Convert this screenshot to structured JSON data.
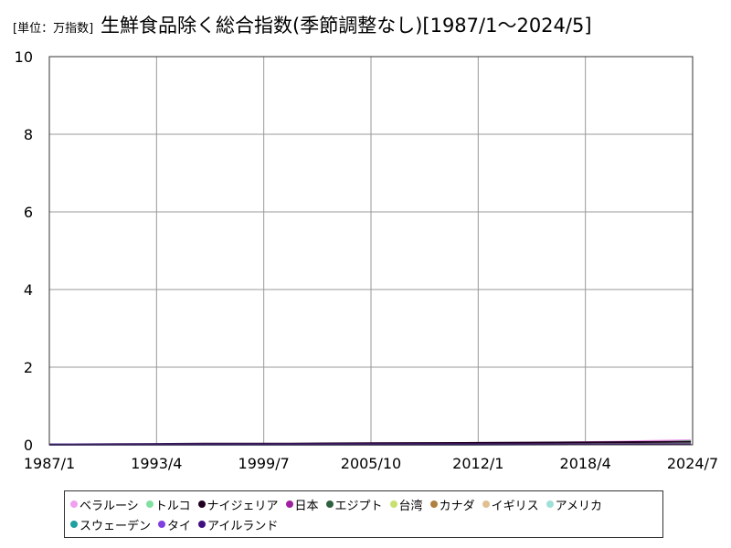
{
  "header": {
    "unit": "[単位：万指数]",
    "title": "生鮮食品除く総合指数(季節調整なし)[1987/1～2024/5]"
  },
  "chart_data": {
    "type": "line",
    "title": "生鮮食品除く総合指数(季節調整なし)[1987/1～2024/5]",
    "unit": "[単位：万指数]",
    "x_ticks": [
      "1987/1",
      "1993/4",
      "1999/7",
      "2005/10",
      "2012/1",
      "2018/4",
      "2024/7"
    ],
    "y_ticks": [
      "0",
      "2",
      "4",
      "6",
      "8",
      "10"
    ],
    "ylim": [
      0,
      10
    ],
    "xlim": [
      1987.0,
      2024.5
    ],
    "grid": true,
    "legend_position": "bottom",
    "series": [
      {
        "name": "ベラルーシ",
        "color": "#f0a0f0",
        "points": [
          [
            2000.0,
            0.0
          ],
          [
            2005.0,
            0.005
          ],
          [
            2010.0,
            0.02
          ],
          [
            2014.0,
            0.04
          ],
          [
            2017.0,
            0.06
          ],
          [
            2020.0,
            0.08
          ],
          [
            2022.0,
            0.1
          ],
          [
            2024.4,
            0.12
          ]
        ]
      },
      {
        "name": "トルコ",
        "color": "#80e0a0",
        "points": [
          [
            1995.0,
            0.0
          ],
          [
            2005.0,
            0.01
          ],
          [
            2015.0,
            0.02
          ],
          [
            2020.0,
            0.03
          ],
          [
            2022.0,
            0.05
          ],
          [
            2024.4,
            0.1
          ]
        ]
      },
      {
        "name": "ナイジェリア",
        "color": "#200020",
        "points": [
          [
            1987.0,
            0.01
          ],
          [
            1993.0,
            0.02
          ],
          [
            1996.0,
            0.03
          ],
          [
            1998.0,
            0.03
          ],
          [
            2001.0,
            0.03
          ],
          [
            2003.0,
            0.035
          ],
          [
            2006.0,
            0.04
          ],
          [
            2012.0,
            0.05
          ],
          [
            2018.0,
            0.06
          ],
          [
            2024.4,
            0.08
          ]
        ]
      },
      {
        "name": "日本",
        "color": "#a020a0",
        "points": [
          [
            1987.0,
            0.01
          ],
          [
            2024.4,
            0.011
          ]
        ]
      },
      {
        "name": "エジプト",
        "color": "#306040",
        "points": [
          [
            1987.0,
            0.001
          ],
          [
            2010.0,
            0.005
          ],
          [
            2024.4,
            0.03
          ]
        ]
      },
      {
        "name": "台湾",
        "color": "#c8e070",
        "points": [
          [
            1987.0,
            0.007
          ],
          [
            2024.4,
            0.011
          ]
        ]
      },
      {
        "name": "カナダ",
        "color": "#b08040",
        "points": [
          [
            1987.0,
            0.007
          ],
          [
            2024.4,
            0.016
          ]
        ]
      },
      {
        "name": "イギリス",
        "color": "#e0c090",
        "points": [
          [
            1988.0,
            0.005
          ],
          [
            2024.4,
            0.013
          ]
        ]
      },
      {
        "name": "アメリカ",
        "color": "#a0e0d8",
        "points": [
          [
            1987.0,
            0.006
          ],
          [
            2024.4,
            0.015
          ]
        ]
      },
      {
        "name": "スウェーデン",
        "color": "#20a0a0",
        "points": [
          [
            1987.0,
            0.006
          ],
          [
            2024.4,
            0.012
          ]
        ]
      },
      {
        "name": "タイ",
        "color": "#8040e0",
        "points": [
          [
            1987.0,
            0.005
          ],
          [
            2024.4,
            0.011
          ]
        ]
      },
      {
        "name": "アイルランド",
        "color": "#401080",
        "points": [
          [
            1987.0,
            0.006
          ],
          [
            2024.4,
            0.012
          ]
        ]
      }
    ]
  }
}
